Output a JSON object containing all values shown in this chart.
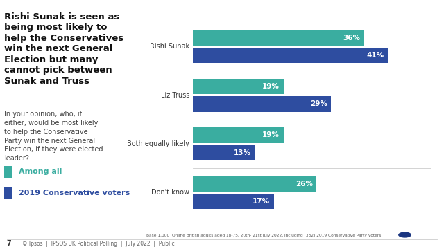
{
  "title": "Rishi Sunak is seen as\nbeing most likely to\nhelp the Conservatives\nwin the next General\nElection but many\ncannot pick between\nSunak and Truss",
  "subtitle": "In your opinion, who, if\neither, would be most likely\nto help the Conservative\nParty win the next General\nElection, if they were elected\nleader?",
  "categories": [
    "Rishi Sunak",
    "Liz Truss",
    "Both equally likely",
    "Don't know"
  ],
  "among_all": [
    36,
    19,
    19,
    26
  ],
  "conservative_voters": [
    41,
    29,
    13,
    17
  ],
  "color_all": "#3aada0",
  "color_con": "#2e4da0",
  "legend_all": "Among all",
  "legend_con": "2019 Conservative voters",
  "footnote": "Base:1,000  Online British adults aged 18-75, 20th- 21st July 2022, including (332) 2019 Conservative Party Voters",
  "footer_left": "© Ipsos  |  IPSOS UK Political Polling  |  July 2022  |  Public",
  "page_num": "7",
  "bg_color": "#ffffff",
  "bar_height": 0.32,
  "xmax": 50
}
